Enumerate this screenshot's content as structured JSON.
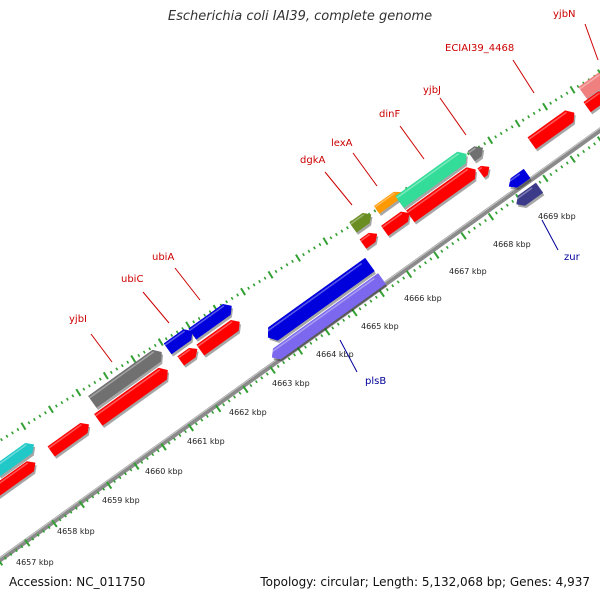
{
  "title": "Escherichia coli IAI39, complete genome",
  "footer": {
    "accession": "Accession: NC_011750",
    "topology": "Topology: circular; Length: 5,132,068 bp; Genes: 4,937"
  },
  "colors": {
    "backbone": "#8a8a8a",
    "tick": "#33a033",
    "label_forward": "#cc0000",
    "label_reverse": "#000099",
    "kbp_label": "#222222"
  },
  "kbp_labels": [
    "4657 kbp",
    "4658 kbp",
    "4659 kbp",
    "4660 kbp",
    "4661 kbp",
    "4662 kbp",
    "4663 kbp",
    "4664 kbp",
    "4665 kbp",
    "4666 kbp",
    "4667 kbp",
    "4668 kbp",
    "4669 kbp"
  ],
  "gene_labels": [
    {
      "text": "yjbI",
      "color": "#cc0000"
    },
    {
      "text": "ubiC",
      "color": "#cc0000"
    },
    {
      "text": "ubiA",
      "color": "#cc0000"
    },
    {
      "text": "dgkA",
      "color": "#cc0000"
    },
    {
      "text": "lexA",
      "color": "#cc0000"
    },
    {
      "text": "dinF",
      "color": "#cc0000"
    },
    {
      "text": "yjbJ",
      "color": "#cc0000"
    },
    {
      "text": "ECIAI39_4468",
      "color": "#cc0000"
    },
    {
      "text": "yjbN",
      "color": "#cc0000"
    },
    {
      "text": "plsB",
      "color": "#000099"
    },
    {
      "text": "zur",
      "color": "#000099"
    }
  ],
  "features": [
    {
      "color": "#20c8c8",
      "strand": "forward"
    },
    {
      "color": "#ff0000",
      "strand": "forward"
    },
    {
      "color": "#ff0000",
      "strand": "forward"
    },
    {
      "color": "#707070",
      "strand": "forward"
    },
    {
      "color": "#ff0000",
      "strand": "forward"
    },
    {
      "color": "#0000dd",
      "strand": "forward"
    },
    {
      "color": "#0000dd",
      "strand": "forward"
    },
    {
      "color": "#ff0000",
      "strand": "forward"
    },
    {
      "color": "#ff0000",
      "strand": "forward"
    },
    {
      "color": "#6b8e23",
      "strand": "forward"
    },
    {
      "color": "#ff0000",
      "strand": "forward"
    },
    {
      "color": "#ff9900",
      "strand": "forward"
    },
    {
      "color": "#ff0000",
      "strand": "forward"
    },
    {
      "color": "#33dd99",
      "strand": "forward"
    },
    {
      "color": "#ff0000",
      "strand": "forward"
    },
    {
      "color": "#707070",
      "strand": "forward"
    },
    {
      "color": "#ff0000",
      "strand": "forward"
    },
    {
      "color": "#ff0000",
      "strand": "forward"
    },
    {
      "color": "#f08080",
      "strand": "forward"
    },
    {
      "color": "#ff0000",
      "strand": "forward"
    },
    {
      "color": "#0000dd",
      "strand": "reverse"
    },
    {
      "color": "#7b68ee",
      "strand": "reverse"
    },
    {
      "color": "#0000dd",
      "strand": "reverse"
    },
    {
      "color": "#3b3b8a",
      "strand": "reverse"
    }
  ]
}
